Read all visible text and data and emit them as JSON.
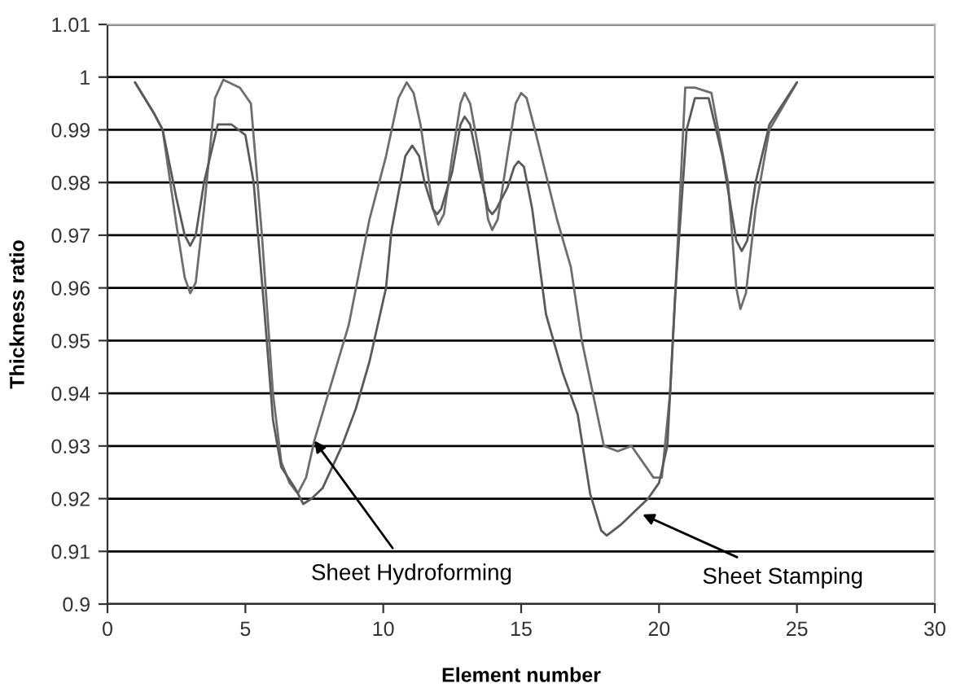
{
  "chart_data": {
    "type": "line",
    "xlabel": "Element number",
    "ylabel": "Thickness ratio",
    "xlim": [
      0,
      30
    ],
    "xticks": [
      0,
      5,
      10,
      15,
      20,
      25,
      30
    ],
    "ylim": [
      0.9,
      1.01
    ],
    "yticks": [
      0.9,
      0.91,
      0.92,
      0.93,
      0.94,
      0.95,
      0.96,
      0.97,
      0.98,
      0.99,
      1,
      1.01
    ],
    "grid": "y",
    "marker": "none",
    "line_style": "solid",
    "series": [
      {
        "color": "#6e6e6e",
        "x": [
          1,
          1.7,
          2,
          2.5,
          2.8,
          3,
          3.2,
          3.5,
          3.9,
          4.2,
          4.8,
          5.2,
          5.6,
          6,
          6.3,
          6.6,
          6.9,
          7.2,
          7.5,
          8.75,
          9.5,
          10.1,
          10.55,
          10.85,
          11.1,
          11.35,
          11.8,
          12,
          12.2,
          12.5,
          12.8,
          12.95,
          13.15,
          13.5,
          13.8,
          13.95,
          14.15,
          14.5,
          14.8,
          15.0,
          15.2,
          15.5,
          16.3,
          16.8,
          17.2,
          18,
          18.5,
          19,
          19.8,
          20.1,
          20.4,
          20.6,
          20.95,
          21.3,
          21.9,
          22.5,
          22.8,
          22.95,
          23.15,
          23.5,
          24,
          25
        ],
        "values": [
          0.999,
          0.993,
          0.99,
          0.972,
          0.962,
          0.959,
          0.961,
          0.975,
          0.996,
          0.9995,
          0.998,
          0.995,
          0.97,
          0.94,
          0.927,
          0.923,
          0.921,
          0.924,
          0.931,
          0.953,
          0.973,
          0.985,
          0.996,
          0.999,
          0.997,
          0.991,
          0.975,
          0.972,
          0.974,
          0.985,
          0.995,
          0.997,
          0.995,
          0.985,
          0.973,
          0.971,
          0.973,
          0.985,
          0.995,
          0.997,
          0.996,
          0.99,
          0.973,
          0.964,
          0.95,
          0.93,
          0.929,
          0.93,
          0.924,
          0.924,
          0.94,
          0.96,
          0.998,
          0.998,
          0.997,
          0.98,
          0.96,
          0.956,
          0.959,
          0.975,
          0.99,
          0.999
        ]
      },
      {
        "color": "#5a5a5a",
        "x": [
          1,
          1.7,
          2,
          2.5,
          2.8,
          3,
          3.2,
          3.5,
          4,
          4.5,
          5,
          5.3,
          5.7,
          6,
          6.3,
          6.8,
          7.1,
          7.4,
          7.8,
          8.5,
          9.0,
          9.5,
          10.1,
          10.3,
          10.8,
          11.05,
          11.3,
          11.5,
          11.8,
          11.95,
          12.1,
          12.5,
          12.8,
          12.95,
          13.15,
          13.5,
          13.8,
          13.95,
          14.1,
          14.5,
          14.75,
          14.9,
          15.1,
          15.4,
          15.9,
          16.5,
          17.05,
          17.5,
          17.9,
          18.1,
          18.35,
          18.6,
          19.2,
          19.6,
          20,
          20.3,
          20.6,
          21,
          21.3,
          21.8,
          22.3,
          22.8,
          23,
          23.2,
          23.5,
          24,
          24.5,
          25
        ],
        "values": [
          0.999,
          0.993,
          0.99,
          0.977,
          0.97,
          0.968,
          0.97,
          0.98,
          0.991,
          0.991,
          0.989,
          0.98,
          0.955,
          0.935,
          0.926,
          0.922,
          0.919,
          0.92,
          0.922,
          0.93,
          0.937,
          0.946,
          0.96,
          0.971,
          0.985,
          0.987,
          0.985,
          0.98,
          0.975,
          0.974,
          0.975,
          0.982,
          0.991,
          0.9925,
          0.991,
          0.982,
          0.975,
          0.974,
          0.975,
          0.979,
          0.983,
          0.984,
          0.983,
          0.975,
          0.955,
          0.944,
          0.936,
          0.921,
          0.914,
          0.913,
          0.914,
          0.915,
          0.918,
          0.92,
          0.923,
          0.93,
          0.96,
          0.99,
          0.996,
          0.996,
          0.985,
          0.969,
          0.967,
          0.969,
          0.98,
          0.991,
          0.995,
          0.999
        ]
      }
    ],
    "annotations": [
      {
        "text": "Sheet Hydroforming",
        "x": 7.5,
        "y": 0.931
      },
      {
        "text": "Sheet Stamping",
        "x": 19.4,
        "y": 0.917
      }
    ]
  }
}
